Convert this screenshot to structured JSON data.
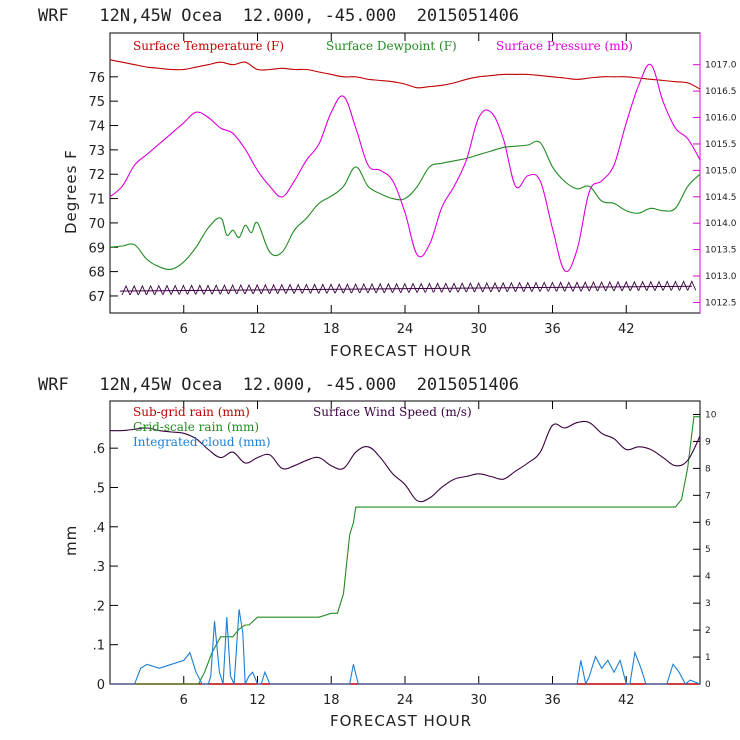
{
  "chart_data": [
    {
      "type": "line",
      "title": "WRF   12N,45W Ocea  12.000, -45.000  2015051406",
      "xlabel": "FORECAST HOUR",
      "ylabel": "Degrees F",
      "y2label": "",
      "xlim": [
        0,
        48
      ],
      "ylim": [
        66.3,
        77.8
      ],
      "y2lim": [
        1012.3,
        1017.6
      ],
      "xticks": [
        6,
        12,
        18,
        24,
        30,
        36,
        42
      ],
      "xtick_labels": [
        "6",
        "12",
        "18",
        "24",
        "30",
        "36",
        "42"
      ],
      "yticks": [
        67,
        68,
        69,
        70,
        71,
        72,
        73,
        74,
        75,
        76
      ],
      "ytick_labels": [
        "67",
        "68",
        "69",
        "70",
        "71",
        "72",
        "73",
        "74",
        "75",
        "76"
      ],
      "y2ticks": [
        1012.5,
        1013.0,
        1013.5,
        1014.0,
        1014.5,
        1015.0,
        1015.5,
        1016.0,
        1016.5,
        1017.0
      ],
      "y2tick_labels": [
        "1012.5",
        "1013.0",
        "1013.5",
        "1014.0",
        "1014.5",
        "1015.0",
        "1015.5",
        "1016.0",
        "1016.5",
        "1017.0"
      ],
      "colors": {
        "temperature": "#c00000",
        "dewpoint": "#228b22",
        "pressure": "#dd00dd",
        "wind": "#3a0040"
      },
      "series": [
        {
          "name": "Surface Temperature (F)",
          "axis": "left",
          "x": [
            0,
            1,
            2,
            3,
            4,
            5,
            6,
            7,
            8,
            9,
            10,
            11,
            12,
            13,
            14,
            15,
            16,
            17,
            18,
            19,
            20,
            21,
            22,
            23,
            24,
            25,
            26,
            27,
            28,
            29,
            30,
            31,
            32,
            33,
            34,
            35,
            36,
            37,
            38,
            39,
            40,
            41,
            42,
            43,
            44,
            45,
            46,
            47,
            48
          ],
          "values": [
            76.7,
            76.6,
            76.5,
            76.4,
            76.35,
            76.3,
            76.3,
            76.4,
            76.5,
            76.6,
            76.5,
            76.6,
            76.3,
            76.3,
            76.35,
            76.3,
            76.3,
            76.2,
            76.1,
            76.0,
            76.0,
            75.9,
            75.85,
            75.8,
            75.7,
            75.55,
            75.6,
            75.65,
            75.75,
            75.9,
            76.0,
            76.05,
            76.1,
            76.1,
            76.1,
            76.05,
            76.0,
            75.95,
            75.9,
            75.95,
            76.0,
            76.0,
            76.0,
            75.95,
            75.9,
            75.85,
            75.8,
            75.75,
            75.5
          ]
        },
        {
          "name": "Surface Dewpoint (F)",
          "axis": "left",
          "x": [
            0,
            1,
            2,
            3,
            4,
            5,
            6,
            7,
            8,
            9,
            9.5,
            10,
            10.5,
            11,
            11.5,
            12,
            13,
            14,
            15,
            16,
            17,
            18,
            19,
            20,
            21,
            22,
            23,
            24,
            25,
            26,
            27,
            28,
            29,
            30,
            31,
            32,
            33,
            34,
            35,
            36,
            37,
            38,
            39,
            40,
            41,
            42,
            43,
            44,
            45,
            46,
            47,
            48
          ],
          "values": [
            69.0,
            69.05,
            69.1,
            68.5,
            68.2,
            68.1,
            68.4,
            69.0,
            69.8,
            70.2,
            69.5,
            69.7,
            69.4,
            69.9,
            69.6,
            70.0,
            68.8,
            68.8,
            69.7,
            70.2,
            70.8,
            71.1,
            71.5,
            72.3,
            71.5,
            71.2,
            71.0,
            71.0,
            71.5,
            72.3,
            72.45,
            72.55,
            72.65,
            72.8,
            72.95,
            73.1,
            73.15,
            73.2,
            73.3,
            72.3,
            71.7,
            71.4,
            71.5,
            70.9,
            70.8,
            70.5,
            70.4,
            70.6,
            70.5,
            70.6,
            71.5,
            72.0
          ]
        },
        {
          "name": "Surface Pressure (mb)",
          "axis": "right",
          "x": [
            0,
            1,
            2,
            3,
            4,
            5,
            6,
            7,
            8,
            9,
            10,
            11,
            12,
            13,
            14,
            15,
            16,
            17,
            18,
            19,
            20,
            21,
            22,
            23,
            24,
            25,
            26,
            27,
            28,
            29,
            30,
            31,
            32,
            33,
            34,
            35,
            36,
            37,
            38,
            39,
            40,
            41,
            42,
            43,
            44,
            45,
            46,
            47,
            48
          ],
          "values": [
            1014.5,
            1014.7,
            1015.1,
            1015.3,
            1015.5,
            1015.7,
            1015.9,
            1016.1,
            1016.0,
            1015.8,
            1015.7,
            1015.4,
            1015.0,
            1014.7,
            1014.5,
            1014.8,
            1015.2,
            1015.5,
            1016.1,
            1016.4,
            1015.8,
            1015.1,
            1015.0,
            1014.8,
            1014.2,
            1013.4,
            1013.6,
            1014.3,
            1014.7,
            1015.2,
            1016.0,
            1016.1,
            1015.6,
            1014.7,
            1014.9,
            1014.8,
            1013.9,
            1013.1,
            1013.5,
            1014.6,
            1014.8,
            1015.1,
            1015.9,
            1016.6,
            1017.0,
            1016.3,
            1015.8,
            1015.6,
            1015.2
          ]
        },
        {
          "name": "Surface Wind (barbs)",
          "axis": "left",
          "style": "barbs",
          "x": [
            0,
            48
          ],
          "values": [
            67.2,
            67.4
          ]
        }
      ],
      "legend": [
        {
          "label": "Surface Temperature (F)",
          "color_key": "temperature"
        },
        {
          "label": "Surface Dewpoint (F)",
          "color_key": "dewpoint"
        },
        {
          "label": "Surface Pressure (mb)",
          "color_key": "pressure"
        }
      ]
    },
    {
      "type": "line",
      "title": "WRF   12N,45W Ocea  12.000, -45.000  2015051406",
      "xlabel": "FORECAST HOUR",
      "ylabel": "mm",
      "xlim": [
        0,
        48
      ],
      "ylim": [
        0,
        0.72
      ],
      "y2lim": [
        0,
        10.5
      ],
      "xticks": [
        6,
        12,
        18,
        24,
        30,
        36,
        42
      ],
      "xtick_labels": [
        "6",
        "12",
        "18",
        "24",
        "30",
        "36",
        "42"
      ],
      "yticks": [
        0,
        0.1,
        0.2,
        0.3,
        0.4,
        0.5,
        0.6
      ],
      "ytick_labels": [
        "0",
        ".1",
        ".2",
        ".3",
        ".4",
        ".5",
        ".6"
      ],
      "y2ticks": [
        0,
        1,
        2,
        3,
        4,
        5,
        6,
        7,
        8,
        9,
        10
      ],
      "y2tick_labels": [
        "0",
        "1",
        "2",
        "3",
        "4",
        "5",
        "6",
        "7",
        "8",
        "9",
        "10"
      ],
      "colors": {
        "subgrid": "#c00000",
        "gridscale": "#228b22",
        "cloud": "#1a7fd4",
        "wind": "#3a0040"
      },
      "series": [
        {
          "name": "Sub-grid rain (mm)",
          "axis": "left",
          "x": [
            0,
            48
          ],
          "values": [
            0,
            0
          ]
        },
        {
          "name": "Grid-scale rain (mm)",
          "axis": "left",
          "x": [
            0,
            7.2,
            7.7,
            8.3,
            9,
            10,
            10.5,
            11,
            11.3,
            12,
            13,
            14,
            15,
            16,
            17,
            18,
            18.5,
            19,
            19.5,
            19.8,
            20,
            20.3,
            21,
            22,
            24,
            30,
            36,
            42,
            46,
            46.5,
            47,
            47.5,
            48
          ],
          "values": [
            0,
            0,
            0.03,
            0.08,
            0.12,
            0.12,
            0.14,
            0.15,
            0.15,
            0.17,
            0.17,
            0.17,
            0.17,
            0.17,
            0.17,
            0.18,
            0.18,
            0.23,
            0.38,
            0.41,
            0.45,
            0.45,
            0.45,
            0.45,
            0.45,
            0.45,
            0.45,
            0.45,
            0.45,
            0.47,
            0.55,
            0.68,
            0.68
          ]
        },
        {
          "name": "Integrated cloud (mm)",
          "axis": "left",
          "x": [
            0,
            2,
            2.5,
            3,
            4,
            5,
            6,
            6.5,
            7,
            7.5,
            8,
            8.2,
            8.5,
            8.9,
            9.2,
            9.5,
            9.8,
            10.1,
            10.5,
            10.8,
            11,
            11.3,
            11.6,
            12,
            12.3,
            12.6,
            13,
            13.3,
            13.8,
            14,
            19.5,
            19.8,
            20.2,
            20.5,
            38,
            38.3,
            38.7,
            39,
            39.5,
            40,
            40.5,
            41,
            41.5,
            42,
            42.3,
            42.7,
            43.2,
            43.6,
            44,
            45.3,
            45.8,
            46.3,
            46.8,
            47.2,
            48
          ],
          "values": [
            0,
            0,
            0.04,
            0.05,
            0.04,
            0.05,
            0.06,
            0.08,
            0.03,
            0,
            0,
            0.02,
            0.16,
            0.03,
            0,
            0.17,
            0.02,
            0,
            0.19,
            0.13,
            0,
            0.02,
            0.03,
            0,
            0,
            0.03,
            0,
            0,
            0,
            0,
            0,
            0.05,
            0,
            0,
            0,
            0.06,
            0,
            0.02,
            0.07,
            0.04,
            0.06,
            0.03,
            0.06,
            0,
            0,
            0.08,
            0.04,
            0,
            0,
            0,
            0.05,
            0.03,
            0,
            0.01,
            0
          ]
        },
        {
          "name": "Surface Wind Speed (m/s)",
          "axis": "right",
          "x": [
            0,
            1,
            2,
            3,
            4,
            5,
            6,
            7,
            8,
            9,
            10,
            11,
            12,
            13,
            14,
            15,
            16,
            17,
            18,
            19,
            20,
            21,
            22,
            23,
            24,
            25,
            26,
            27,
            28,
            29,
            30,
            31,
            32,
            33,
            34,
            35,
            36,
            37,
            38,
            39,
            40,
            41,
            42,
            43,
            44,
            45,
            46,
            47,
            48
          ],
          "values": [
            9.4,
            9.4,
            9.45,
            9.5,
            9.4,
            9.35,
            9.3,
            9.1,
            8.7,
            8.4,
            8.6,
            8.2,
            8.4,
            8.5,
            8.0,
            8.1,
            8.3,
            8.4,
            8.1,
            8.0,
            8.6,
            8.8,
            8.4,
            7.8,
            7.4,
            6.8,
            6.9,
            7.3,
            7.6,
            7.7,
            7.8,
            7.7,
            7.6,
            7.9,
            8.2,
            8.6,
            9.6,
            9.5,
            9.7,
            9.7,
            9.3,
            9.1,
            8.7,
            8.8,
            8.7,
            8.4,
            8.1,
            8.3,
            9.2
          ]
        }
      ],
      "legend": [
        {
          "label": "Sub-grid rain (mm)",
          "color_key": "subgrid"
        },
        {
          "label": "Surface Wind Speed (m/s)",
          "color_key": "wind"
        },
        {
          "label": "Grid-scale rain (mm)",
          "color_key": "gridscale"
        },
        {
          "label": "Integrated cloud (mm)",
          "color_key": "cloud"
        }
      ]
    }
  ]
}
